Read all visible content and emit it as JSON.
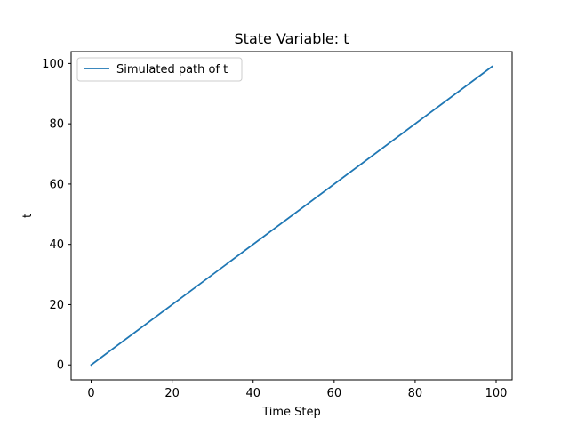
{
  "chart_data": {
    "type": "line",
    "title": "State Variable: t",
    "xlabel": "Time Step",
    "ylabel": "t",
    "xlim": [
      -4.95,
      103.95
    ],
    "ylim": [
      -4.95,
      103.95
    ],
    "xticks": [
      0,
      20,
      40,
      60,
      80,
      100
    ],
    "yticks": [
      0,
      20,
      40,
      60,
      80,
      100
    ],
    "grid": false,
    "legend_position": "upper-left",
    "series": [
      {
        "name": "Simulated path of t",
        "color": "#1f77b4",
        "x": [
          0,
          99
        ],
        "y": [
          0,
          99
        ]
      }
    ]
  }
}
